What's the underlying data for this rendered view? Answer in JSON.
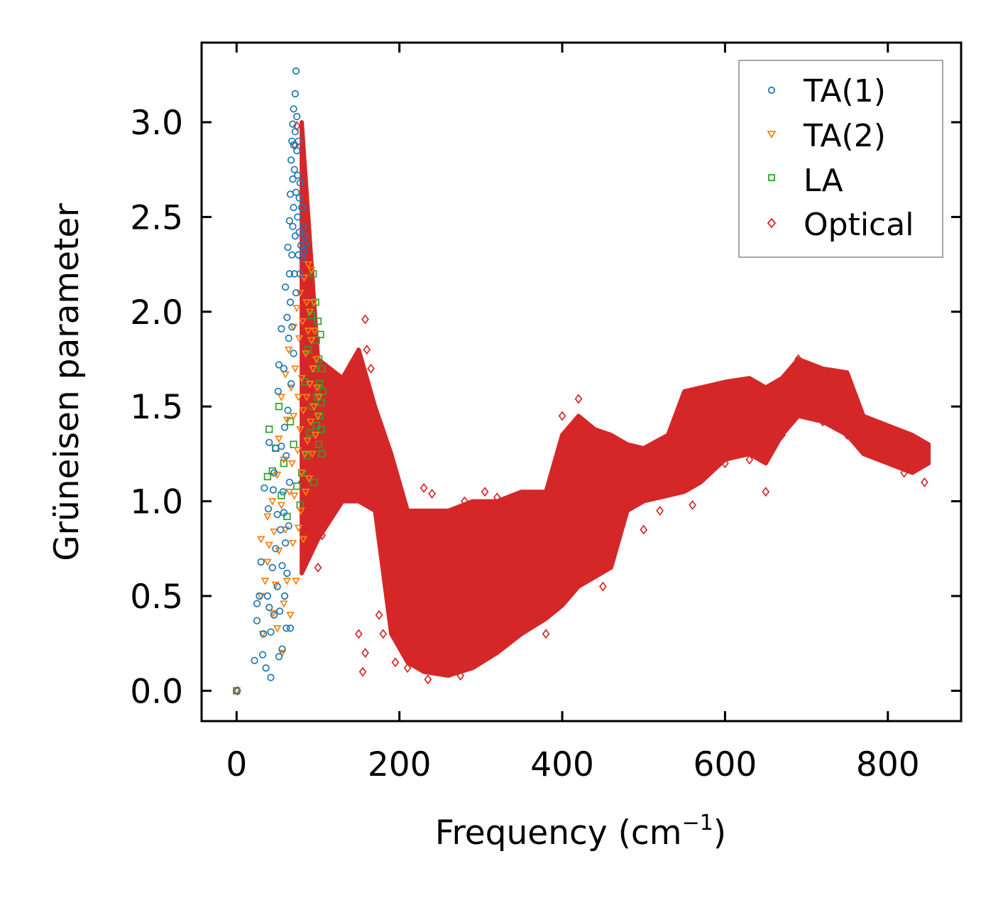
{
  "chart_data": {
    "type": "scatter",
    "title": "",
    "xlabel": "Frequency (cm",
    "xlabel_sup": "−1",
    "xlabel_close": ")",
    "ylabel": "Grüneisen parameter",
    "xlim": [
      -43,
      890
    ],
    "ylim": [
      -0.16,
      3.42
    ],
    "xticks": [
      0,
      200,
      400,
      600,
      800
    ],
    "xtick_labels": [
      "0",
      "200",
      "400",
      "600",
      "800"
    ],
    "yticks": [
      0.0,
      0.5,
      1.0,
      1.5,
      2.0,
      2.5,
      3.0
    ],
    "ytick_labels": [
      "0.0",
      "0.5",
      "1.0",
      "1.5",
      "2.0",
      "2.5",
      "3.0"
    ],
    "grid": false,
    "legend_position": "top-right",
    "series": [
      {
        "name": "TA(1)",
        "marker": "circle",
        "color": "#1f77b4",
        "points": [
          [
            0,
            0.0
          ],
          [
            22,
            0.16
          ],
          [
            25,
            0.37
          ],
          [
            25,
            0.46
          ],
          [
            28,
            0.5
          ],
          [
            30,
            0.68
          ],
          [
            32,
            0.19
          ],
          [
            33,
            0.3
          ],
          [
            34,
            1.07
          ],
          [
            36,
            0.12
          ],
          [
            38,
            0.5
          ],
          [
            39,
            0.96
          ],
          [
            40,
            0.44
          ],
          [
            40,
            1.31
          ],
          [
            42,
            0.07
          ],
          [
            42,
            0.31
          ],
          [
            44,
            0.65
          ],
          [
            45,
            1.06
          ],
          [
            46,
            0.4
          ],
          [
            46,
            1.15
          ],
          [
            48,
            0.75
          ],
          [
            48,
            1.28
          ],
          [
            50,
            0.55
          ],
          [
            50,
            0.93
          ],
          [
            51,
            1.58
          ],
          [
            52,
            0.18
          ],
          [
            52,
            1.72
          ],
          [
            53,
            0.42
          ],
          [
            54,
            0.85
          ],
          [
            55,
            1.29
          ],
          [
            55,
            1.91
          ],
          [
            56,
            0.22
          ],
          [
            56,
            0.66
          ],
          [
            57,
            1.05
          ],
          [
            58,
            0.94
          ],
          [
            58,
            1.7
          ],
          [
            59,
            0.5
          ],
          [
            59,
            1.39
          ],
          [
            60,
            0.78
          ],
          [
            60,
            2.13
          ],
          [
            61,
            0.33
          ],
          [
            61,
            1.24
          ],
          [
            62,
            0.62
          ],
          [
            62,
            1.97
          ],
          [
            63,
            1.48
          ],
          [
            63,
            2.34
          ],
          [
            64,
            0.87
          ],
          [
            64,
            1.86
          ],
          [
            65,
            2.2
          ],
          [
            65,
            2.48
          ],
          [
            65,
            1.1
          ],
          [
            66,
            0.33
          ],
          [
            66,
            2.05
          ],
          [
            66,
            2.62
          ],
          [
            67,
            1.62
          ],
          [
            67,
            2.8
          ],
          [
            68,
            2.3
          ],
          [
            68,
            2.9
          ],
          [
            68,
            1.92
          ],
          [
            69,
            2.7
          ],
          [
            69,
            2.99
          ],
          [
            69,
            2.45
          ],
          [
            70,
            3.07
          ],
          [
            70,
            2.88
          ],
          [
            70,
            2.55
          ],
          [
            70,
            1.78
          ],
          [
            71,
            2.2
          ],
          [
            71,
            2.75
          ],
          [
            72,
            2.95
          ],
          [
            72,
            3.15
          ],
          [
            72,
            2.4
          ],
          [
            73,
            3.27
          ],
          [
            73,
            2.63
          ],
          [
            73,
            2.1
          ],
          [
            74,
            2.85
          ],
          [
            74,
            3.03
          ],
          [
            75,
            2.5
          ],
          [
            75,
            2.72
          ],
          [
            76,
            2.3
          ],
          [
            76,
            2.9
          ],
          [
            77,
            2.6
          ],
          [
            77,
            2.42
          ],
          [
            78,
            2.2
          ],
          [
            78,
            2.68
          ],
          [
            79,
            2.35
          ],
          [
            80,
            2.55
          ],
          [
            81,
            2.28
          ],
          [
            82,
            2.45
          ],
          [
            83,
            2.32
          ],
          [
            84,
            2.4
          ],
          [
            85,
            2.36
          ]
        ]
      },
      {
        "name": "TA(2)",
        "marker": "triangle",
        "color": "#ff7f0e",
        "points": [
          [
            0,
            0.0
          ],
          [
            30,
            0.5
          ],
          [
            30,
            0.8
          ],
          [
            32,
            0.3
          ],
          [
            35,
            0.58
          ],
          [
            38,
            0.68
          ],
          [
            38,
            0.92
          ],
          [
            40,
            0.77
          ],
          [
            44,
            1.0
          ],
          [
            45,
            0.41
          ],
          [
            46,
            0.84
          ],
          [
            48,
            0.56
          ],
          [
            50,
            1.14
          ],
          [
            50,
            0.33
          ],
          [
            52,
            0.74
          ],
          [
            52,
            1.33
          ],
          [
            55,
            0.98
          ],
          [
            55,
            1.55
          ],
          [
            56,
            0.2
          ],
          [
            58,
            0.46
          ],
          [
            58,
            1.22
          ],
          [
            60,
            0.85
          ],
          [
            60,
            1.67
          ],
          [
            62,
            0.58
          ],
          [
            62,
            1.43
          ],
          [
            64,
            1.8
          ],
          [
            65,
            1.05
          ],
          [
            66,
            0.4
          ],
          [
            67,
            1.6
          ],
          [
            68,
            1.2
          ],
          [
            69,
            0.78
          ],
          [
            70,
            1.92
          ],
          [
            70,
            1.45
          ],
          [
            71,
            1.03
          ],
          [
            72,
            1.7
          ],
          [
            73,
            0.58
          ],
          [
            74,
            2.02
          ],
          [
            75,
            1.27
          ],
          [
            76,
            1.55
          ],
          [
            76,
            0.86
          ],
          [
            77,
            1.86
          ],
          [
            78,
            1.38
          ],
          [
            78,
            2.1
          ],
          [
            79,
            0.95
          ],
          [
            80,
            1.65
          ],
          [
            80,
            1.15
          ],
          [
            81,
            1.95
          ],
          [
            82,
            0.8
          ],
          [
            82,
            1.48
          ],
          [
            83,
            2.18
          ],
          [
            84,
            1.25
          ],
          [
            85,
            1.78
          ],
          [
            85,
            1.05
          ],
          [
            86,
            2.05
          ],
          [
            86,
            1.55
          ],
          [
            87,
            1.32
          ],
          [
            88,
            1.9
          ],
          [
            88,
            2.25
          ],
          [
            89,
            1.12
          ],
          [
            90,
            1.62
          ],
          [
            90,
            2.0
          ],
          [
            91,
            1.42
          ],
          [
            92,
            1.85
          ],
          [
            92,
            2.22
          ],
          [
            93,
            1.25
          ],
          [
            94,
            1.7
          ],
          [
            95,
            1.5
          ],
          [
            95,
            2.05
          ],
          [
            96,
            1.9
          ],
          [
            97,
            1.35
          ],
          [
            98,
            1.75
          ],
          [
            99,
            1.6
          ],
          [
            100,
            1.45
          ],
          [
            101,
            1.55
          ]
        ]
      },
      {
        "name": "LA",
        "marker": "square",
        "color": "#2ca02c",
        "points": [
          [
            0,
            0.0
          ],
          [
            38,
            1.13
          ],
          [
            40,
            1.38
          ],
          [
            44,
            1.16
          ],
          [
            48,
            1.28
          ],
          [
            52,
            1.5
          ],
          [
            55,
            1.03
          ],
          [
            58,
            1.2
          ],
          [
            62,
            0.92
          ],
          [
            66,
            1.42
          ],
          [
            70,
            1.3
          ],
          [
            74,
            1.08
          ],
          [
            78,
            0.98
          ],
          [
            80,
            1.15
          ],
          [
            84,
            1.63
          ],
          [
            86,
            1.24
          ],
          [
            88,
            1.8
          ],
          [
            90,
            1.36
          ],
          [
            92,
            1.98
          ],
          [
            93,
            1.5
          ],
          [
            94,
            2.2
          ],
          [
            95,
            1.1
          ],
          [
            96,
            1.7
          ],
          [
            97,
            2.05
          ],
          [
            98,
            1.4
          ],
          [
            98,
            1.85
          ],
          [
            99,
            1.55
          ],
          [
            100,
            1.95
          ],
          [
            101,
            1.3
          ],
          [
            101,
            1.75
          ],
          [
            102,
            1.45
          ],
          [
            102,
            1.62
          ],
          [
            103,
            1.88
          ],
          [
            104,
            1.38
          ],
          [
            104,
            1.52
          ],
          [
            105,
            1.7
          ],
          [
            105,
            1.25
          ],
          [
            106,
            1.58
          ]
        ]
      },
      {
        "name": "Optical",
        "marker": "diamond",
        "color": "#d62728",
        "band": {
          "x": [
            80,
            100,
            130,
            150,
            170,
            190,
            210,
            230,
            260,
            290,
            320,
            350,
            380,
            400,
            420,
            440,
            460,
            480,
            500,
            530,
            550,
            570,
            600,
            630,
            650,
            670,
            690,
            720,
            750,
            770,
            800,
            830,
            850
          ],
          "y_low": [
            0.62,
            0.8,
            1.0,
            1.0,
            0.95,
            0.3,
            0.15,
            0.1,
            0.08,
            0.12,
            0.2,
            0.3,
            0.38,
            0.45,
            0.55,
            0.6,
            0.65,
            0.95,
            1.0,
            1.03,
            1.05,
            1.1,
            1.22,
            1.25,
            1.2,
            1.35,
            1.45,
            1.42,
            1.35,
            1.25,
            1.2,
            1.15,
            1.2
          ],
          "y_high": [
            3.0,
            1.75,
            1.65,
            1.8,
            1.5,
            1.25,
            0.95,
            0.95,
            0.95,
            1.0,
            1.0,
            1.05,
            1.05,
            1.35,
            1.45,
            1.38,
            1.35,
            1.3,
            1.28,
            1.35,
            1.58,
            1.6,
            1.63,
            1.65,
            1.6,
            1.65,
            1.75,
            1.7,
            1.68,
            1.45,
            1.4,
            1.35,
            1.3
          ]
        },
        "outliers": [
          [
            1,
            0.0
          ],
          [
            72,
            2.88
          ],
          [
            74,
            2.98
          ],
          [
            80,
            1.1
          ],
          [
            85,
            0.95
          ],
          [
            90,
            0.88
          ],
          [
            100,
            0.65
          ],
          [
            105,
            0.82
          ],
          [
            150,
            0.3
          ],
          [
            155,
            0.1
          ],
          [
            158,
            0.2
          ],
          [
            158,
            1.96
          ],
          [
            160,
            1.8
          ],
          [
            165,
            1.7
          ],
          [
            175,
            0.4
          ],
          [
            180,
            0.3
          ],
          [
            195,
            0.15
          ],
          [
            210,
            0.12
          ],
          [
            230,
            1.07
          ],
          [
            235,
            0.06
          ],
          [
            240,
            1.04
          ],
          [
            275,
            0.08
          ],
          [
            280,
            1.0
          ],
          [
            290,
            0.15
          ],
          [
            305,
            1.05
          ],
          [
            320,
            1.02
          ],
          [
            380,
            0.3
          ],
          [
            390,
            0.45
          ],
          [
            400,
            1.45
          ],
          [
            420,
            1.54
          ],
          [
            450,
            0.55
          ],
          [
            500,
            0.85
          ],
          [
            520,
            0.95
          ],
          [
            560,
            0.98
          ],
          [
            600,
            1.2
          ],
          [
            630,
            1.22
          ],
          [
            650,
            1.05
          ],
          [
            670,
            1.35
          ],
          [
            690,
            1.75
          ],
          [
            720,
            1.42
          ],
          [
            750,
            1.35
          ],
          [
            780,
            1.25
          ],
          [
            820,
            1.15
          ],
          [
            845,
            1.1
          ]
        ]
      }
    ]
  }
}
